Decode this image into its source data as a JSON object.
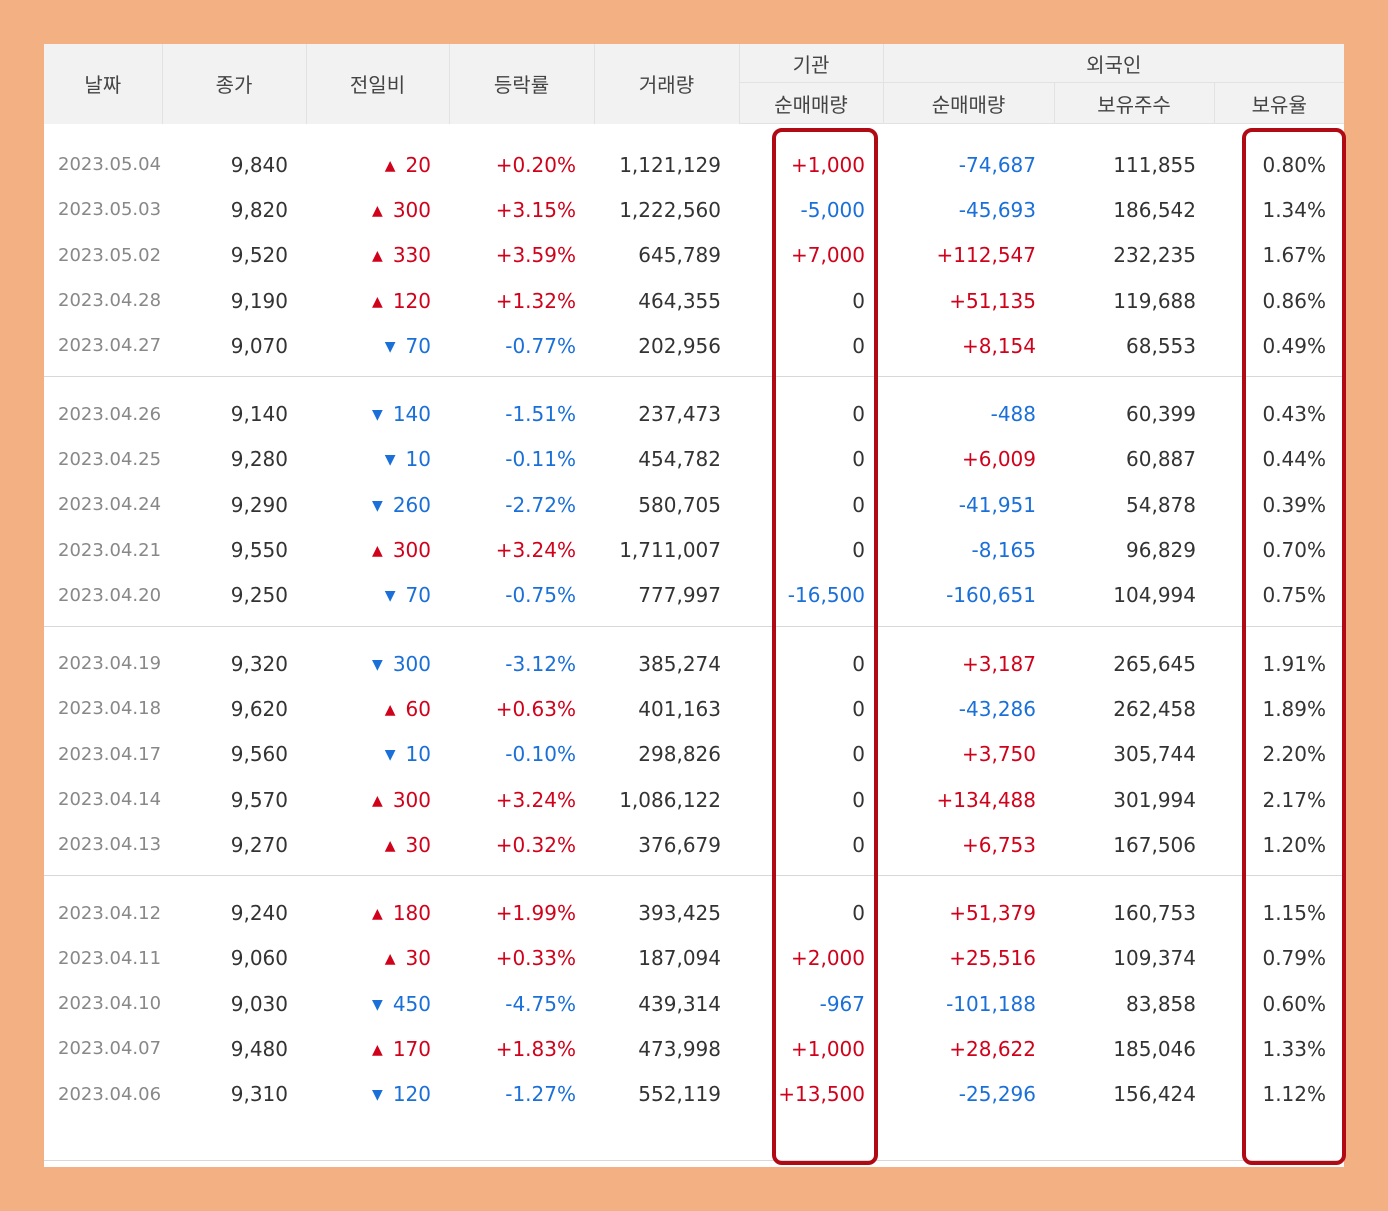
{
  "header": {
    "date": "날짜",
    "close": "종가",
    "change": "전일비",
    "rate": "등락률",
    "volume": "거래량",
    "institution": "기관",
    "institution_net": "순매매량",
    "foreign": "외국인",
    "foreign_net": "순매매량",
    "foreign_shares": "보유주수",
    "foreign_ratio": "보유율"
  },
  "colors": {
    "up": "#d0021b",
    "down": "#1a6fd8",
    "highlight": "#b00b14",
    "frame": "#f3b083"
  },
  "groups": [
    [
      {
        "date": "2023.05.04",
        "close": "9,840",
        "dir": "up",
        "change": "20",
        "rate": "+0.20%",
        "volume": "1,121,129",
        "inst": "+1,000",
        "foreign": "-74,687",
        "shares": "111,855",
        "ratio": "0.80%"
      },
      {
        "date": "2023.05.03",
        "close": "9,820",
        "dir": "up",
        "change": "300",
        "rate": "+3.15%",
        "volume": "1,222,560",
        "inst": "-5,000",
        "foreign": "-45,693",
        "shares": "186,542",
        "ratio": "1.34%"
      },
      {
        "date": "2023.05.02",
        "close": "9,520",
        "dir": "up",
        "change": "330",
        "rate": "+3.59%",
        "volume": "645,789",
        "inst": "+7,000",
        "foreign": "+112,547",
        "shares": "232,235",
        "ratio": "1.67%"
      },
      {
        "date": "2023.04.28",
        "close": "9,190",
        "dir": "up",
        "change": "120",
        "rate": "+1.32%",
        "volume": "464,355",
        "inst": "0",
        "foreign": "+51,135",
        "shares": "119,688",
        "ratio": "0.86%"
      },
      {
        "date": "2023.04.27",
        "close": "9,070",
        "dir": "down",
        "change": "70",
        "rate": "-0.77%",
        "volume": "202,956",
        "inst": "0",
        "foreign": "+8,154",
        "shares": "68,553",
        "ratio": "0.49%"
      }
    ],
    [
      {
        "date": "2023.04.26",
        "close": "9,140",
        "dir": "down",
        "change": "140",
        "rate": "-1.51%",
        "volume": "237,473",
        "inst": "0",
        "foreign": "-488",
        "shares": "60,399",
        "ratio": "0.43%"
      },
      {
        "date": "2023.04.25",
        "close": "9,280",
        "dir": "down",
        "change": "10",
        "rate": "-0.11%",
        "volume": "454,782",
        "inst": "0",
        "foreign": "+6,009",
        "shares": "60,887",
        "ratio": "0.44%"
      },
      {
        "date": "2023.04.24",
        "close": "9,290",
        "dir": "down",
        "change": "260",
        "rate": "-2.72%",
        "volume": "580,705",
        "inst": "0",
        "foreign": "-41,951",
        "shares": "54,878",
        "ratio": "0.39%"
      },
      {
        "date": "2023.04.21",
        "close": "9,550",
        "dir": "up",
        "change": "300",
        "rate": "+3.24%",
        "volume": "1,711,007",
        "inst": "0",
        "foreign": "-8,165",
        "shares": "96,829",
        "ratio": "0.70%"
      },
      {
        "date": "2023.04.20",
        "close": "9,250",
        "dir": "down",
        "change": "70",
        "rate": "-0.75%",
        "volume": "777,997",
        "inst": "-16,500",
        "foreign": "-160,651",
        "shares": "104,994",
        "ratio": "0.75%"
      }
    ],
    [
      {
        "date": "2023.04.19",
        "close": "9,320",
        "dir": "down",
        "change": "300",
        "rate": "-3.12%",
        "volume": "385,274",
        "inst": "0",
        "foreign": "+3,187",
        "shares": "265,645",
        "ratio": "1.91%"
      },
      {
        "date": "2023.04.18",
        "close": "9,620",
        "dir": "up",
        "change": "60",
        "rate": "+0.63%",
        "volume": "401,163",
        "inst": "0",
        "foreign": "-43,286",
        "shares": "262,458",
        "ratio": "1.89%"
      },
      {
        "date": "2023.04.17",
        "close": "9,560",
        "dir": "down",
        "change": "10",
        "rate": "-0.10%",
        "volume": "298,826",
        "inst": "0",
        "foreign": "+3,750",
        "shares": "305,744",
        "ratio": "2.20%"
      },
      {
        "date": "2023.04.14",
        "close": "9,570",
        "dir": "up",
        "change": "300",
        "rate": "+3.24%",
        "volume": "1,086,122",
        "inst": "0",
        "foreign": "+134,488",
        "shares": "301,994",
        "ratio": "2.17%"
      },
      {
        "date": "2023.04.13",
        "close": "9,270",
        "dir": "up",
        "change": "30",
        "rate": "+0.32%",
        "volume": "376,679",
        "inst": "0",
        "foreign": "+6,753",
        "shares": "167,506",
        "ratio": "1.20%"
      }
    ],
    [
      {
        "date": "2023.04.12",
        "close": "9,240",
        "dir": "up",
        "change": "180",
        "rate": "+1.99%",
        "volume": "393,425",
        "inst": "0",
        "foreign": "+51,379",
        "shares": "160,753",
        "ratio": "1.15%"
      },
      {
        "date": "2023.04.11",
        "close": "9,060",
        "dir": "up",
        "change": "30",
        "rate": "+0.33%",
        "volume": "187,094",
        "inst": "+2,000",
        "foreign": "+25,516",
        "shares": "109,374",
        "ratio": "0.79%"
      },
      {
        "date": "2023.04.10",
        "close": "9,030",
        "dir": "down",
        "change": "450",
        "rate": "-4.75%",
        "volume": "439,314",
        "inst": "-967",
        "foreign": "-101,188",
        "shares": "83,858",
        "ratio": "0.60%"
      },
      {
        "date": "2023.04.07",
        "close": "9,480",
        "dir": "up",
        "change": "170",
        "rate": "+1.83%",
        "volume": "473,998",
        "inst": "+1,000",
        "foreign": "+28,622",
        "shares": "185,046",
        "ratio": "1.33%"
      },
      {
        "date": "2023.04.06",
        "close": "9,310",
        "dir": "down",
        "change": "120",
        "rate": "-1.27%",
        "volume": "552,119",
        "inst": "+13,500",
        "foreign": "-25,296",
        "shares": "156,424",
        "ratio": "1.12%"
      }
    ]
  ]
}
